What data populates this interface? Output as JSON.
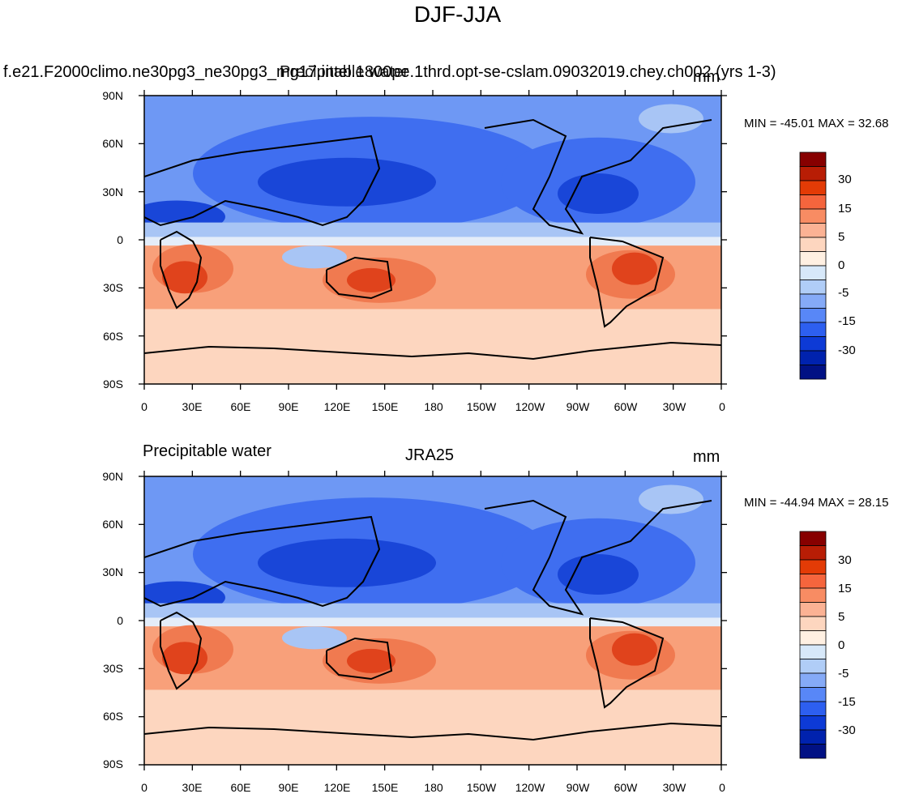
{
  "title": "DJF-JJA",
  "panels": [
    {
      "left_label": "f.e21.F2000climo.ne30pg3_ne30pg3_mg17.intel.1800pe.1thrd.opt-se-cslam.09032019.chey.ch002 (yrs 1-3)",
      "center_label": "Precipitable water",
      "right_label": "mm",
      "minmax": "MIN = -45.01 MAX =  32.68"
    },
    {
      "left_label": "Precipitable water",
      "center_label": "JRA25",
      "right_label": "mm",
      "minmax": "MIN = -44.94 MAX =  28.15"
    }
  ],
  "axes": {
    "lat_ticks": [
      "90N",
      "60N",
      "30N",
      "0",
      "30S",
      "60S",
      "90S"
    ],
    "lon_ticks": [
      "0",
      "30E",
      "60E",
      "90E",
      "120E",
      "150E",
      "180",
      "150W",
      "120W",
      "90W",
      "60W",
      "30W",
      "0"
    ]
  },
  "colorbar": {
    "labels": [
      "30",
      "15",
      "5",
      "0",
      "-5",
      "-15",
      "-30"
    ],
    "colors": [
      "#870000",
      "#b81d05",
      "#e33b06",
      "#f5653d",
      "#f88c63",
      "#fbb294",
      "#fdd6bf",
      "#fff0e2",
      "#d7e8f9",
      "#b0cdf7",
      "#85aaf7",
      "#5887f7",
      "#2d5ff0",
      "#0d3ad6",
      "#0022ae",
      "#011184"
    ]
  },
  "map_colors": {
    "strong_neg": "#1946d8",
    "neg": "#3f6ef0",
    "mid_neg": "#6e98f4",
    "light_neg": "#a8c5f5",
    "zero": "#e4edf9",
    "light_pos": "#fdd6bf",
    "pos": "#f8a07a",
    "mid_pos": "#f07a50",
    "strong_pos": "#e0431c"
  }
}
